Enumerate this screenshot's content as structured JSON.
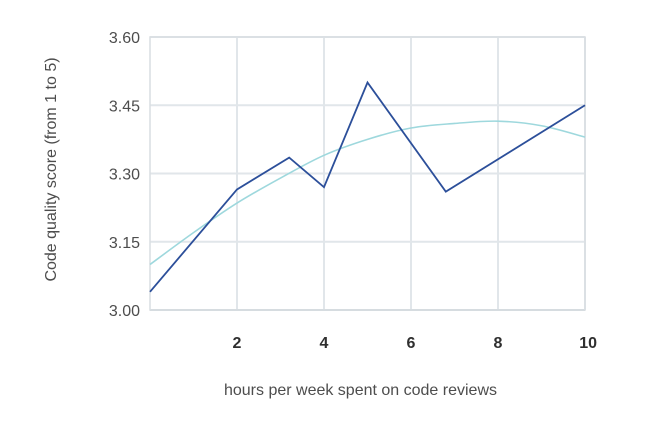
{
  "chart_data": {
    "type": "line",
    "title": "",
    "xlabel": "hours per week spent on code reviews",
    "ylabel": "Code quality score (from 1 to 5)",
    "xlim": [
      0,
      10
    ],
    "ylim": [
      3.0,
      3.6
    ],
    "xticks": [
      2,
      4,
      6,
      8,
      10
    ],
    "xtick_labels": [
      "2",
      "4",
      "6",
      "8",
      "10"
    ],
    "yticks": [
      3.0,
      3.15,
      3.3,
      3.45,
      3.6
    ],
    "ytick_labels": [
      "3.00",
      "3.15",
      "3.30",
      "3.45",
      "3.60"
    ],
    "grid": true,
    "series": [
      {
        "kind": "observed",
        "color": "#2c4f9a",
        "x": [
          0,
          2,
          3.2,
          4,
          5,
          6.8,
          10
        ],
        "y": [
          3.04,
          3.265,
          3.335,
          3.27,
          3.5,
          3.26,
          3.45
        ]
      },
      {
        "kind": "trend",
        "color": "#9ed8dd",
        "x": [
          0,
          1,
          2,
          3,
          4,
          5,
          6,
          7,
          8,
          9,
          10
        ],
        "y": [
          3.1,
          3.17,
          3.235,
          3.29,
          3.34,
          3.375,
          3.4,
          3.41,
          3.415,
          3.405,
          3.38
        ]
      }
    ]
  }
}
